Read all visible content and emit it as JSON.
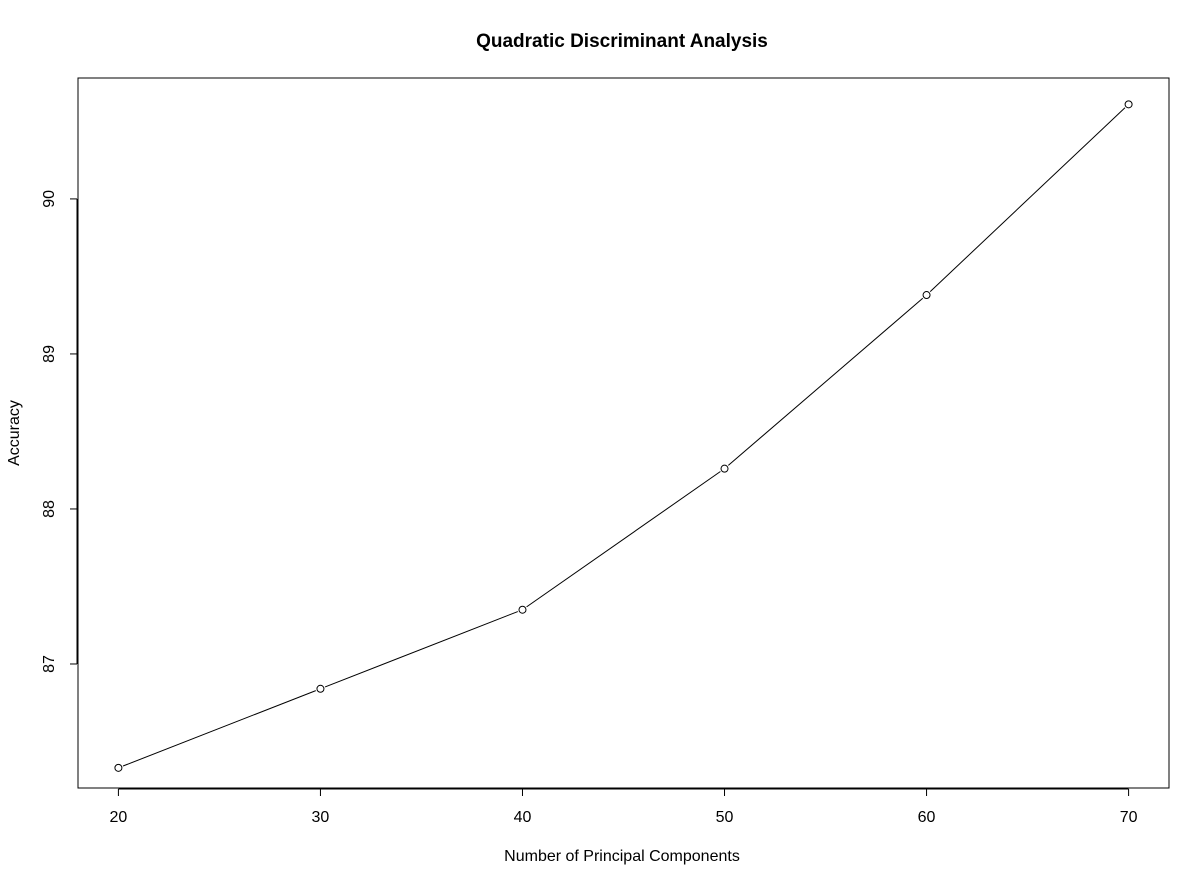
{
  "chart_data": {
    "type": "line",
    "title": "Quadratic Discriminant Analysis",
    "xlabel": "Number of Principal Components",
    "ylabel": "Accuracy",
    "x": [
      20,
      30,
      40,
      50,
      60,
      70
    ],
    "series": [
      {
        "values": [
          86.33,
          86.84,
          87.35,
          88.26,
          89.38,
          90.61
        ]
      }
    ],
    "xticks": [
      "20",
      "30",
      "40",
      "50",
      "60",
      "70"
    ],
    "xtick_values": [
      20,
      30,
      40,
      50,
      60,
      70
    ],
    "yticks": [
      "87",
      "88",
      "89",
      "90"
    ],
    "ytick_values": [
      87,
      88,
      89,
      90
    ],
    "xlim": [
      18,
      72
    ],
    "ylim": [
      86.2,
      90.78
    ],
    "grid": false,
    "marker": "open-circle",
    "line_color": "#000000"
  }
}
